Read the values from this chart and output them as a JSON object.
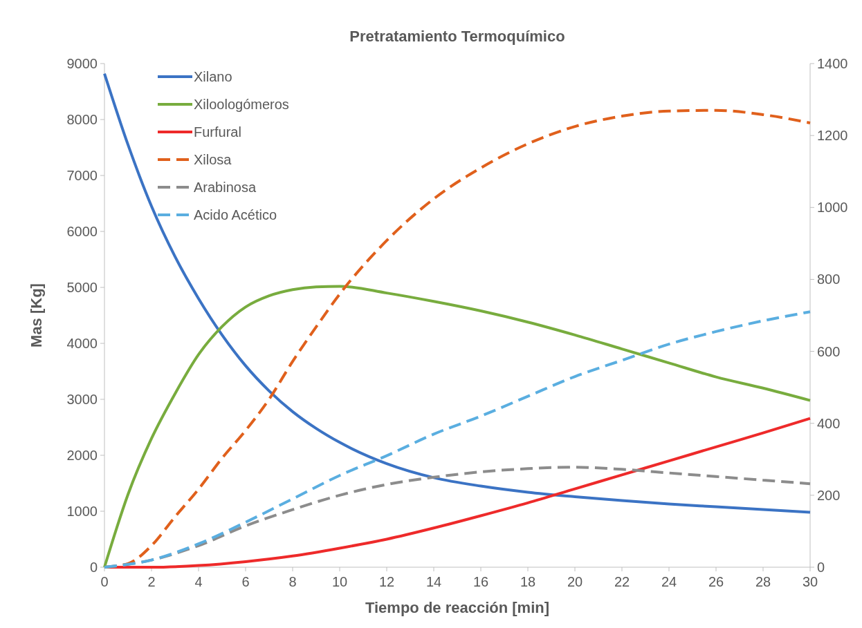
{
  "chart_data": {
    "type": "line",
    "title": "Pretratamiento Termoquímico",
    "xlabel": "Tiempo de reacción [min]",
    "ylabel": "Mas [Kg]",
    "xlim": [
      0,
      30
    ],
    "xticks": [
      0,
      2,
      4,
      6,
      8,
      10,
      12,
      14,
      16,
      18,
      20,
      22,
      24,
      26,
      28,
      30
    ],
    "ylim": [
      0,
      9000
    ],
    "yticks": [
      0,
      1000,
      2000,
      3000,
      4000,
      5000,
      6000,
      7000,
      8000,
      9000
    ],
    "y2lim": [
      0,
      1400
    ],
    "y2ticks": [
      0,
      200,
      400,
      600,
      800,
      1000,
      1200,
      1400
    ],
    "grid": false,
    "legend": "top left",
    "marker": "none",
    "series": [
      {
        "name": "Xilano",
        "color": "#3b73c4",
        "line_style": "solid",
        "x": [
          0,
          1,
          2,
          3,
          4,
          5,
          6,
          7,
          8,
          9,
          10,
          12,
          14,
          16,
          18,
          20,
          22,
          24,
          26,
          28,
          30
        ],
        "values": [
          8820,
          7550,
          6450,
          5550,
          4800,
          4150,
          3600,
          3150,
          2780,
          2480,
          2230,
          1850,
          1600,
          1450,
          1340,
          1260,
          1190,
          1130,
          1080,
          1030,
          980
        ]
      },
      {
        "name": "Xiloologómeros",
        "color": "#78ac3e",
        "line_style": "solid",
        "x": [
          0,
          1,
          2,
          3,
          4,
          5,
          6,
          7,
          8,
          9,
          10,
          12,
          14,
          16,
          18,
          20,
          22,
          24,
          26,
          28,
          30
        ],
        "values": [
          0,
          1300,
          2300,
          3100,
          3800,
          4300,
          4650,
          4850,
          4960,
          5010,
          5020,
          4900,
          4750,
          4580,
          4380,
          4150,
          3900,
          3650,
          3400,
          3200,
          2980
        ]
      },
      {
        "name": "Furfural",
        "color": "#ee2a2a",
        "line_style": "solid",
        "x": [
          0,
          2,
          4,
          6,
          8,
          10,
          12,
          14,
          16,
          18,
          20,
          22,
          24,
          26,
          28,
          30
        ],
        "values": [
          0,
          0,
          30,
          100,
          200,
          340,
          500,
          700,
          920,
          1150,
          1400,
          1650,
          1900,
          2150,
          2400,
          2660
        ]
      },
      {
        "name": "Xilosa",
        "color": "#e0601c",
        "line_style": "dashed",
        "axis": "y2",
        "x": [
          0,
          1,
          2,
          3,
          4,
          5,
          6,
          7,
          8,
          9,
          10,
          12,
          14,
          16,
          18,
          20,
          22,
          24,
          26,
          28,
          30
        ],
        "values": [
          0,
          10,
          60,
          140,
          217,
          303,
          380,
          467,
          572,
          668,
          759,
          908,
          1024,
          1110,
          1177,
          1225,
          1254,
          1268,
          1270,
          1258,
          1235
        ]
      },
      {
        "name": "Arabinosa",
        "color": "#8c8c8c",
        "line_style": "dashed",
        "axis": "y2",
        "x": [
          0,
          2,
          4,
          6,
          8,
          10,
          12,
          14,
          16,
          18,
          20,
          22,
          24,
          26,
          28,
          30
        ],
        "values": [
          0,
          20,
          60,
          115,
          160,
          200,
          230,
          250,
          265,
          274,
          278,
          272,
          262,
          252,
          242,
          232
        ]
      },
      {
        "name": "Acido Acético",
        "color": "#5aaee0",
        "line_style": "dashed",
        "axis": "y2",
        "x": [
          0,
          2,
          4,
          6,
          8,
          10,
          12,
          14,
          16,
          18,
          20,
          22,
          24,
          26,
          28,
          30
        ],
        "values": [
          0,
          20,
          65,
          125,
          190,
          255,
          310,
          370,
          420,
          475,
          530,
          575,
          620,
          655,
          685,
          710
        ]
      }
    ]
  }
}
